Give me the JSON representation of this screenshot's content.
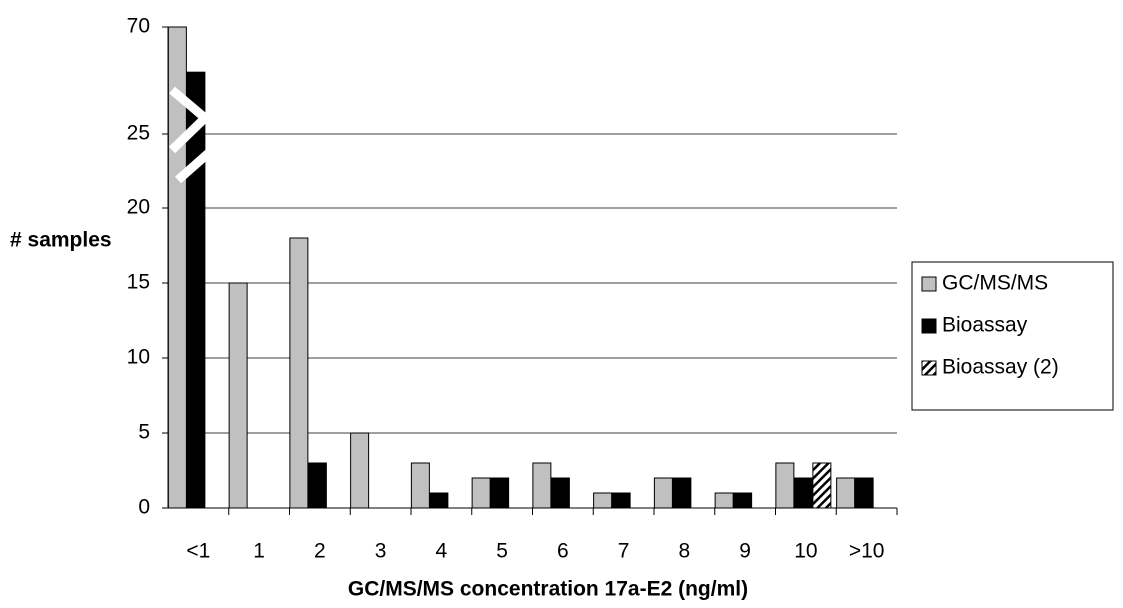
{
  "chart_data": {
    "type": "bar",
    "x_label": "GC/MS/MS concentration 17a-E2 (ng/ml)",
    "y_label": "# samples",
    "categories": [
      "<1",
      "1",
      "2",
      "3",
      "4",
      "5",
      "6",
      "7",
      "8",
      "9",
      "10",
      ">10"
    ],
    "series": [
      {
        "name": "GC/MS/MS",
        "color": "#c0c0c0",
        "values": [
          70,
          15,
          18,
          5,
          3,
          2,
          3,
          1,
          2,
          1,
          3,
          2
        ]
      },
      {
        "name": "Bioassay",
        "color": "#000000",
        "values": [
          51,
          0,
          3,
          0,
          1,
          2,
          2,
          1,
          2,
          1,
          2,
          2
        ]
      },
      {
        "name": "Bioassay (2)",
        "color": "#ffffff",
        "hatch": true,
        "values": [
          null,
          null,
          null,
          null,
          null,
          null,
          null,
          null,
          null,
          null,
          3,
          null
        ]
      }
    ],
    "ylim": [
      0,
      70
    ],
    "yticks": [
      0,
      5,
      10,
      15,
      20,
      25,
      70
    ],
    "axis_break": true,
    "grid": true,
    "legend": "right"
  }
}
